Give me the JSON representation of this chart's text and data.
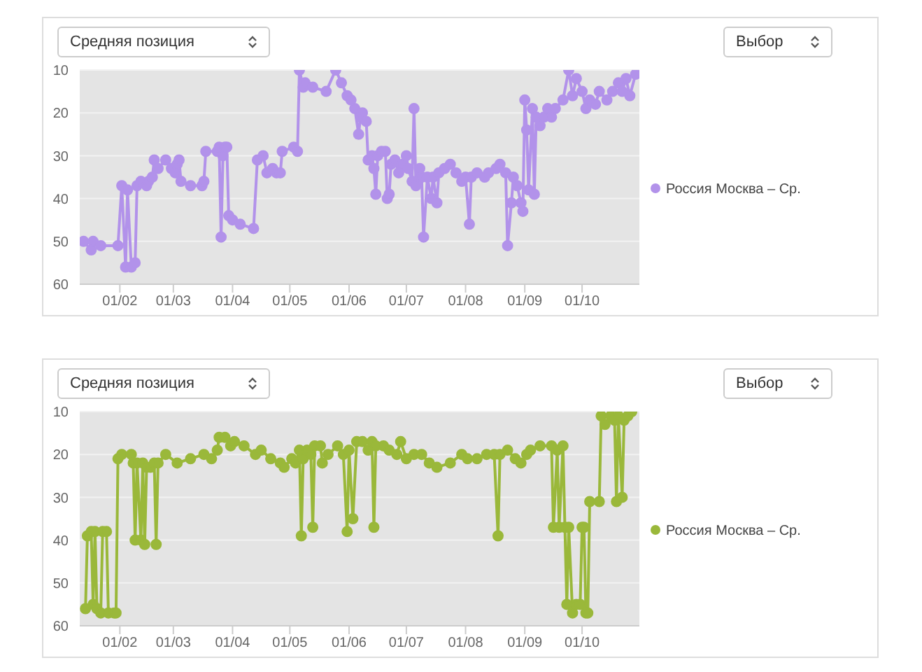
{
  "chart_data": [
    {
      "type": "line",
      "annotations": [
        "Средняя позиция",
        "Выбор"
      ],
      "xlim": [
        "--01-11",
        "--10-31"
      ],
      "xticks": [
        {
          "value": "--02-01",
          "label": "01/02"
        },
        {
          "value": "--03-01",
          "label": "01/03"
        },
        {
          "value": "--04-01",
          "label": "01/04"
        },
        {
          "value": "--05-01",
          "label": "01/05"
        },
        {
          "value": "--06-01",
          "label": "01/06"
        },
        {
          "value": "--07-01",
          "label": "01/07"
        },
        {
          "value": "--08-01",
          "label": "01/08"
        },
        {
          "value": "--09-01",
          "label": "01/09"
        },
        {
          "value": "--10-01",
          "label": "01/10"
        }
      ],
      "ylim": [
        60,
        10
      ],
      "yticks": [
        10,
        20,
        30,
        40,
        50,
        60
      ],
      "grid": "y",
      "legend": "right",
      "marker": "circle",
      "line_style": "solid",
      "x": [
        "--01-13",
        "--01-17",
        "--01-18",
        "--01-22",
        "--01-31",
        "--02-02",
        "--02-04",
        "--02-05",
        "--02-07",
        "--02-09",
        "--02-10",
        "--02-12",
        "--02-15",
        "--02-16",
        "--02-18",
        "--02-19",
        "--02-21",
        "--02-25",
        "--02-28",
        "--03-02",
        "--03-03",
        "--03-04",
        "--03-05",
        "--03-10",
        "--03-16",
        "--03-17",
        "--03-18",
        "--03-24",
        "--03-25",
        "--03-26",
        "--03-27",
        "--03-28",
        "--03-29",
        "--03-30",
        "--04-01",
        "--04-05",
        "--04-12",
        "--04-14",
        "--04-17",
        "--04-19",
        "--04-22",
        "--04-24",
        "--04-26",
        "--04-27",
        "--05-03",
        "--05-05",
        "--05-06",
        "--05-08",
        "--05-09",
        "--05-13",
        "--05-20",
        "--05-25",
        "--05-28",
        "--05-31",
        "--06-02",
        "--06-04",
        "--06-06",
        "--06-07",
        "--06-08",
        "--06-10",
        "--06-11",
        "--06-13",
        "--06-14",
        "--06-15",
        "--06-16",
        "--06-18",
        "--06-20",
        "--06-21",
        "--06-22",
        "--06-23",
        "--06-25",
        "--06-27",
        "--06-29",
        "--07-01",
        "--07-02",
        "--07-04",
        "--07-05",
        "--07-06",
        "--07-08",
        "--07-09",
        "--07-10",
        "--07-12",
        "--07-14",
        "--07-15",
        "--07-17",
        "--07-18",
        "--07-21",
        "--07-24",
        "--07-27",
        "--07-30",
        "--08-01",
        "--08-03",
        "--08-04",
        "--08-07",
        "--08-11",
        "--08-13",
        "--08-17",
        "--08-19",
        "--08-22",
        "--08-23",
        "--08-25",
        "--08-26",
        "--08-28",
        "--08-30",
        "--08-31",
        "--09-01",
        "--09-02",
        "--09-03",
        "--09-05",
        "--09-06",
        "--09-07",
        "--09-09",
        "--09-11",
        "--09-13",
        "--09-15",
        "--09-17",
        "--09-21",
        "--09-24",
        "--09-26",
        "--09-28",
        "--10-01",
        "--10-03",
        "--10-05",
        "--10-08",
        "--10-10",
        "--10-14",
        "--10-17",
        "--10-20",
        "--10-22",
        "--10-24",
        "--10-26",
        "--10-29"
      ],
      "series": [
        {
          "name": "Россия Москва – Ср.",
          "color": "#b292ea",
          "values": [
            50,
            52,
            50,
            51,
            51,
            37,
            56,
            38,
            56,
            55,
            37,
            36,
            37,
            36,
            35,
            31,
            33,
            31,
            33,
            34,
            32,
            31,
            36,
            37,
            37,
            36,
            29,
            29,
            28,
            49,
            30,
            28,
            28,
            44,
            45,
            46,
            47,
            31,
            30,
            34,
            33,
            34,
            34,
            29,
            28,
            29,
            10,
            14,
            13,
            14,
            15,
            10,
            13,
            16,
            17,
            19,
            25,
            21,
            20,
            22,
            31,
            30,
            33,
            39,
            30,
            29,
            29,
            40,
            39,
            32,
            31,
            34,
            32,
            30,
            33,
            36,
            19,
            37,
            33,
            35,
            49,
            35,
            40,
            35,
            41,
            34,
            33,
            32,
            34,
            36,
            35,
            46,
            35,
            34,
            35,
            34,
            33,
            32,
            34,
            51,
            41,
            35,
            37,
            41,
            43,
            17,
            24,
            38,
            19,
            39,
            21,
            23,
            21,
            19,
            21,
            19,
            17,
            10,
            16,
            12,
            15,
            19,
            17,
            18,
            15,
            17,
            15,
            13,
            15,
            12,
            16,
            11
          ]
        }
      ]
    },
    {
      "type": "line",
      "annotations": [
        "Средняя позиция",
        "Выбор"
      ],
      "xlim": [
        "--01-11",
        "--10-31"
      ],
      "xticks": [
        {
          "value": "--02-01",
          "label": "01/02"
        },
        {
          "value": "--03-01",
          "label": "01/03"
        },
        {
          "value": "--04-01",
          "label": "01/04"
        },
        {
          "value": "--05-01",
          "label": "01/05"
        },
        {
          "value": "--06-01",
          "label": "01/06"
        },
        {
          "value": "--07-01",
          "label": "01/07"
        },
        {
          "value": "--08-01",
          "label": "01/08"
        },
        {
          "value": "--09-01",
          "label": "01/09"
        },
        {
          "value": "--10-01",
          "label": "01/10"
        }
      ],
      "ylim": [
        60,
        10
      ],
      "yticks": [
        10,
        20,
        30,
        40,
        50,
        60
      ],
      "grid": "y",
      "legend": "right",
      "marker": "circle",
      "line_style": "solid",
      "x": [
        "--01-14",
        "--01-15",
        "--01-17",
        "--01-18",
        "--01-19",
        "--01-20",
        "--01-22",
        "--01-23",
        "--01-25",
        "--01-26",
        "--01-29",
        "--01-30",
        "--01-31",
        "--02-02",
        "--02-07",
        "--02-08",
        "--02-09",
        "--02-10",
        "--02-12",
        "--02-13",
        "--02-14",
        "--02-15",
        "--02-17",
        "--02-19",
        "--02-20",
        "--02-21",
        "--02-25",
        "--03-03",
        "--03-10",
        "--03-17",
        "--03-21",
        "--03-24",
        "--03-25",
        "--03-28",
        "--03-31",
        "--04-02",
        "--04-07",
        "--04-13",
        "--04-16",
        "--04-21",
        "--04-26",
        "--04-28",
        "--05-02",
        "--05-04",
        "--05-06",
        "--05-07",
        "--05-08",
        "--05-10",
        "--05-12",
        "--05-13",
        "--05-14",
        "--05-17",
        "--05-18",
        "--05-21",
        "--05-26",
        "--05-29",
        "--05-31",
        "--06-01",
        "--06-03",
        "--06-05",
        "--06-08",
        "--06-11",
        "--06-13",
        "--06-14",
        "--06-15",
        "--06-19",
        "--06-22",
        "--06-26",
        "--06-28",
        "--07-01",
        "--07-05",
        "--07-09",
        "--07-13",
        "--07-17",
        "--07-24",
        "--07-30",
        "--08-02",
        "--08-07",
        "--08-12",
        "--08-16",
        "--08-18",
        "--08-19",
        "--08-23",
        "--08-27",
        "--08-30",
        "--09-02",
        "--09-04",
        "--09-09",
        "--09-15",
        "--09-16",
        "--09-18",
        "--09-19",
        "--09-21",
        "--09-22",
        "--09-23",
        "--09-24",
        "--09-26",
        "--09-28",
        "--09-30",
        "--10-01",
        "--10-02",
        "--10-03",
        "--10-04",
        "--10-05",
        "--10-10",
        "--10-11",
        "--10-13",
        "--10-16",
        "--10-18",
        "--10-19",
        "--10-20",
        "--10-22",
        "--10-23",
        "--10-25",
        "--10-27"
      ],
      "series": [
        {
          "name": "Россия Москва – Ср.",
          "color": "#9ab83a",
          "values": [
            56,
            39,
            38,
            55,
            38,
            56,
            57,
            38,
            38,
            57,
            57,
            57,
            21,
            20,
            20,
            22,
            40,
            22,
            40,
            22,
            41,
            23,
            23,
            22,
            41,
            22,
            20,
            22,
            21,
            20,
            21,
            19,
            16,
            16,
            18,
            17,
            18,
            20,
            19,
            21,
            22,
            23,
            21,
            22,
            19,
            39,
            21,
            19,
            20,
            37,
            18,
            18,
            22,
            20,
            18,
            20,
            38,
            19,
            35,
            17,
            17,
            19,
            17,
            37,
            18,
            18,
            19,
            20,
            17,
            21,
            20,
            20,
            22,
            23,
            22,
            20,
            21,
            21,
            20,
            20,
            39,
            20,
            19,
            21,
            22,
            20,
            19,
            18,
            18,
            37,
            19,
            37,
            18,
            37,
            55,
            37,
            57,
            55,
            55,
            37,
            37,
            57,
            57,
            31,
            31,
            11,
            13,
            11,
            12,
            31,
            11,
            30,
            12,
            11,
            10
          ]
        }
      ]
    }
  ]
}
